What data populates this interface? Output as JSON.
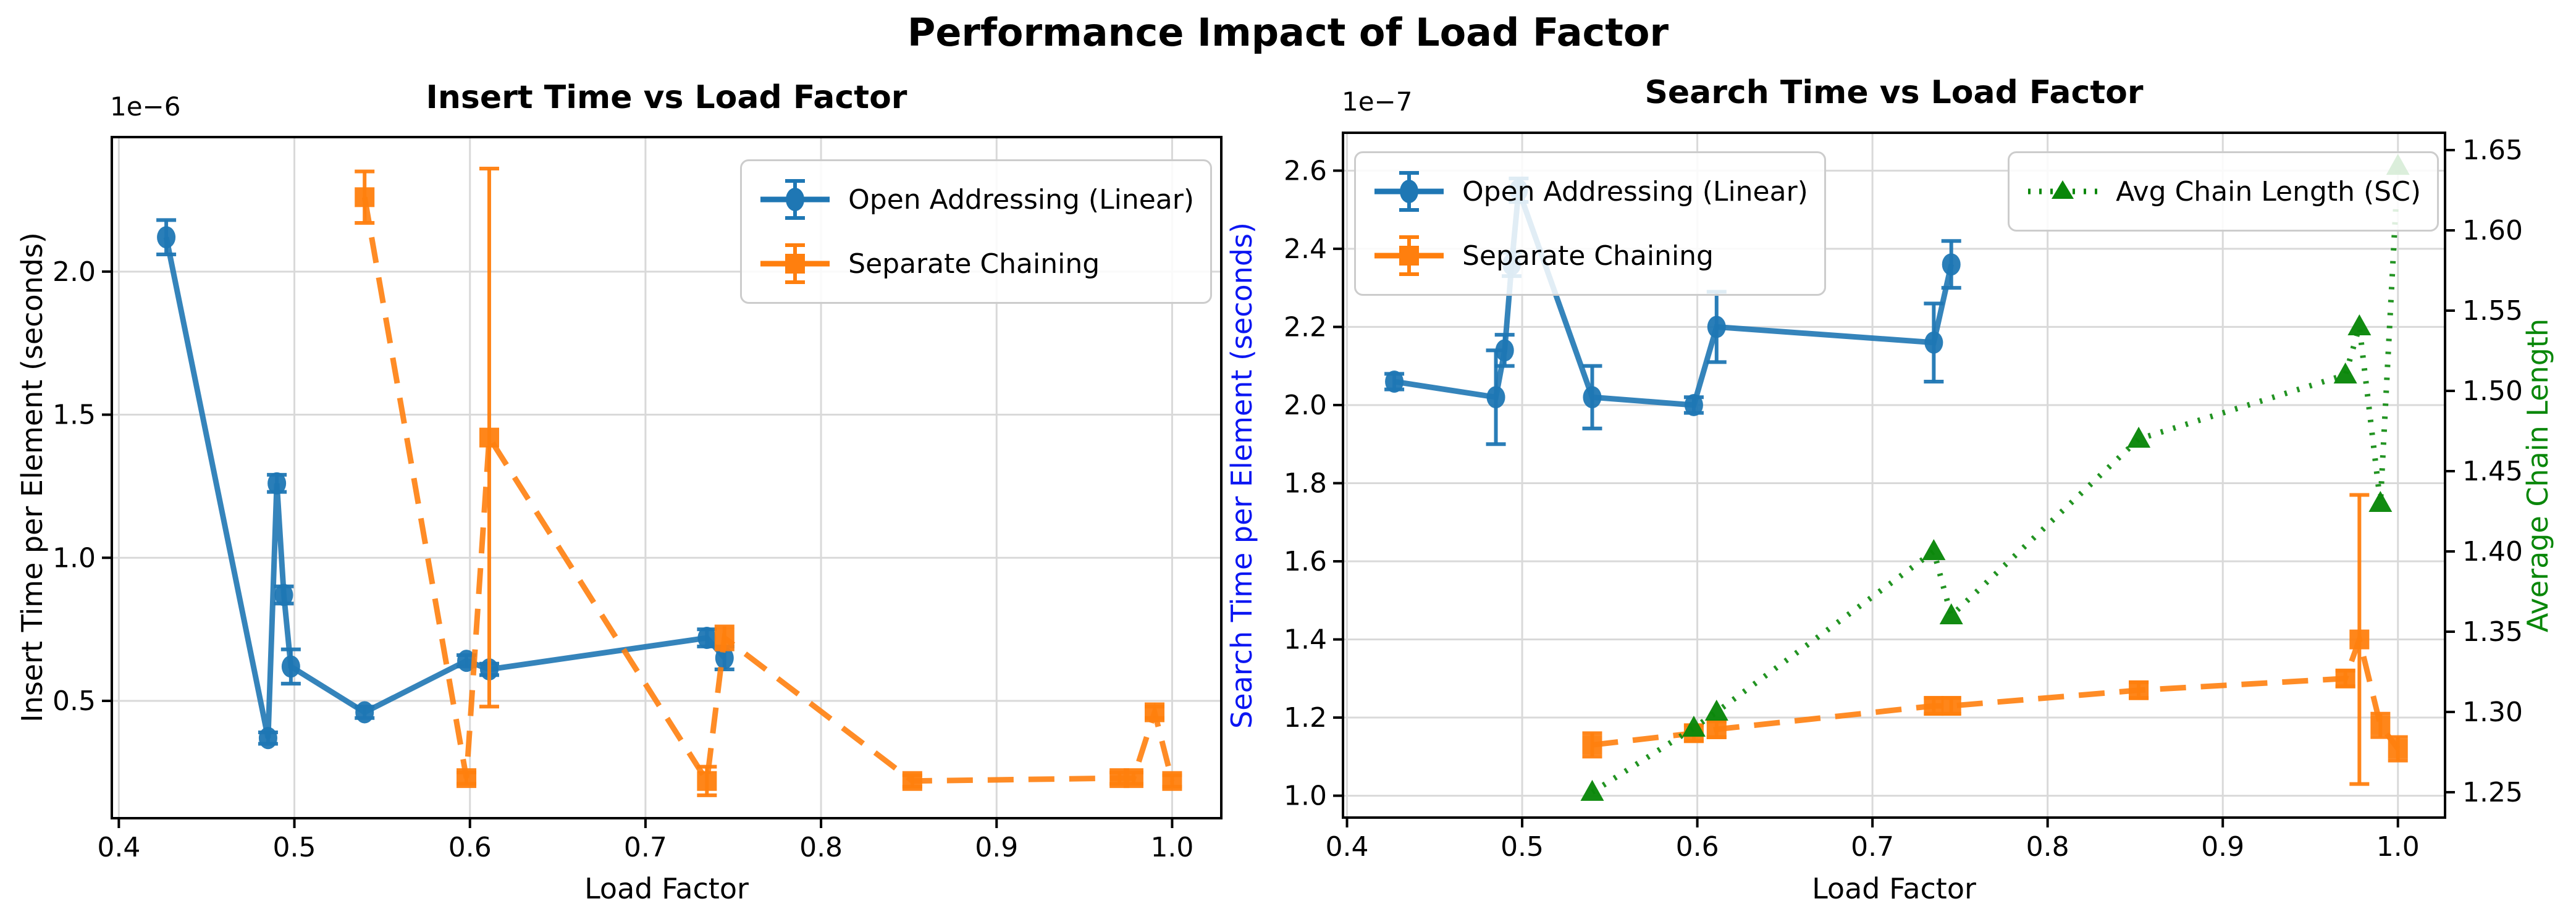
{
  "page": {
    "suptitle": "Performance Impact of Load Factor"
  },
  "colors": {
    "open_addressing": "#1f77b4",
    "separate_chaining": "#ff7f0e",
    "chain_length": "#0a870a",
    "search_axis_label": "#0b16f2",
    "chain_axis_label": "#0a870a",
    "grid": "#d9d9d9",
    "axis": "#000000",
    "legend_border": "#cccccc"
  },
  "chart_data": [
    {
      "type": "line",
      "title": "Insert Time vs Load Factor",
      "offset_label": "1e−6",
      "xlabel": "Load Factor",
      "ylabel": "Insert Time per Element (seconds)",
      "xlim": [
        0.396,
        1.028
      ],
      "ylim": [
        0.09,
        2.47
      ],
      "grid": true,
      "xtick_values": [
        0.4,
        0.5,
        0.6,
        0.7,
        0.8,
        0.9,
        1.0
      ],
      "xtick_labels": [
        "0.4",
        "0.5",
        "0.6",
        "0.7",
        "0.8",
        "0.9",
        "1.0"
      ],
      "ytick_values": [
        0.5,
        1.0,
        1.5,
        2.0
      ],
      "ytick_labels": [
        "0.5",
        "1.0",
        "1.5",
        "2.0"
      ],
      "legend_position": "upper-right",
      "series": [
        {
          "id": "oa_insert",
          "name": "Open Addressing (Linear)",
          "color_key": "open_addressing",
          "line_style": "solid",
          "marker": "circle",
          "x": [
            0.427,
            0.485,
            0.49,
            0.494,
            0.498,
            0.54,
            0.598,
            0.611,
            0.735,
            0.745
          ],
          "y": [
            2.12,
            0.37,
            1.26,
            0.87,
            0.62,
            0.46,
            0.64,
            0.61,
            0.72,
            0.65
          ],
          "yerr": [
            0.06,
            0.02,
            0.03,
            0.03,
            0.06,
            0.02,
            0.02,
            0.02,
            0.03,
            0.04
          ]
        },
        {
          "id": "sc_insert",
          "name": "Separate Chaining",
          "color_key": "separate_chaining",
          "line_style": "dashed",
          "marker": "square",
          "x": [
            0.54,
            0.598,
            0.611,
            0.735,
            0.745,
            0.852,
            0.97,
            0.978,
            0.99,
            1.0
          ],
          "y": [
            2.26,
            0.23,
            1.42,
            0.22,
            0.72,
            0.22,
            0.23,
            0.23,
            0.46,
            0.22
          ],
          "yerr": [
            0.09,
            0.02,
            0.94,
            0.05,
            0.04,
            0.02,
            0.02,
            0.02,
            0.02,
            0.02
          ]
        }
      ]
    },
    {
      "type": "line",
      "title": "Search Time vs Load Factor",
      "offset_label": "1e−7",
      "xlabel": "Load Factor",
      "ylabel": "Search Time per Element (seconds)",
      "y2label": "Average Chain Length",
      "xlim": [
        0.3977,
        1.0269
      ],
      "ylim": [
        0.944,
        2.697
      ],
      "y2lim": [
        1.2342,
        1.6608
      ],
      "grid": true,
      "xtick_values": [
        0.4,
        0.5,
        0.6,
        0.7,
        0.8,
        0.9,
        1.0
      ],
      "xtick_labels": [
        "0.4",
        "0.5",
        "0.6",
        "0.7",
        "0.8",
        "0.9",
        "1.0"
      ],
      "ytick_values": [
        1.0,
        1.2,
        1.4,
        1.6,
        1.8,
        2.0,
        2.2,
        2.4,
        2.6
      ],
      "ytick_labels": [
        "1.0",
        "1.2",
        "1.4",
        "1.6",
        "1.8",
        "2.0",
        "2.2",
        "2.4",
        "2.6"
      ],
      "y2tick_values": [
        1.25,
        1.3,
        1.35,
        1.4,
        1.45,
        1.5,
        1.55,
        1.6,
        1.65
      ],
      "y2tick_labels": [
        "1.25",
        "1.30",
        "1.35",
        "1.40",
        "1.45",
        "1.50",
        "1.55",
        "1.60",
        "1.65"
      ],
      "legend_position": "upper-left",
      "series": [
        {
          "id": "oa_search",
          "name": "Open Addressing (Linear)",
          "color_key": "open_addressing",
          "line_style": "solid",
          "marker": "circle",
          "x": [
            0.427,
            0.485,
            0.49,
            0.494,
            0.498,
            0.54,
            0.598,
            0.611,
            0.735,
            0.745
          ],
          "y": [
            2.06,
            2.02,
            2.14,
            2.36,
            2.55,
            2.02,
            2.0,
            2.2,
            2.16,
            2.36
          ],
          "yerr": [
            0.02,
            0.12,
            0.04,
            0.03,
            0.03,
            0.08,
            0.02,
            0.09,
            0.1,
            0.06
          ]
        },
        {
          "id": "sc_search",
          "name": "Separate Chaining",
          "color_key": "separate_chaining",
          "line_style": "dashed",
          "marker": "square",
          "x": [
            0.54,
            0.598,
            0.611,
            0.735,
            0.745,
            0.852,
            0.97,
            0.978,
            0.99,
            1.0
          ],
          "y": [
            1.13,
            1.16,
            1.17,
            1.23,
            1.23,
            1.27,
            1.3,
            1.4,
            1.18,
            1.12
          ],
          "yerr": [
            0.03,
            0.02,
            0.02,
            0.02,
            0.02,
            0.02,
            0.02,
            0.37,
            0.03,
            0.03
          ]
        },
        {
          "id": "chain_length",
          "name": "Avg Chain Length (SC)",
          "color_key": "chain_length",
          "axis": "y2",
          "line_style": "dotted",
          "marker": "triangle",
          "x": [
            0.54,
            0.598,
            0.611,
            0.735,
            0.745,
            0.852,
            0.97,
            0.978,
            0.99,
            1.0
          ],
          "y": [
            1.25,
            1.29,
            1.3,
            1.4,
            1.36,
            1.47,
            1.51,
            1.54,
            1.43,
            1.64
          ],
          "yerr": [
            0,
            0,
            0,
            0,
            0,
            0,
            0,
            0,
            0,
            0
          ]
        }
      ]
    }
  ]
}
